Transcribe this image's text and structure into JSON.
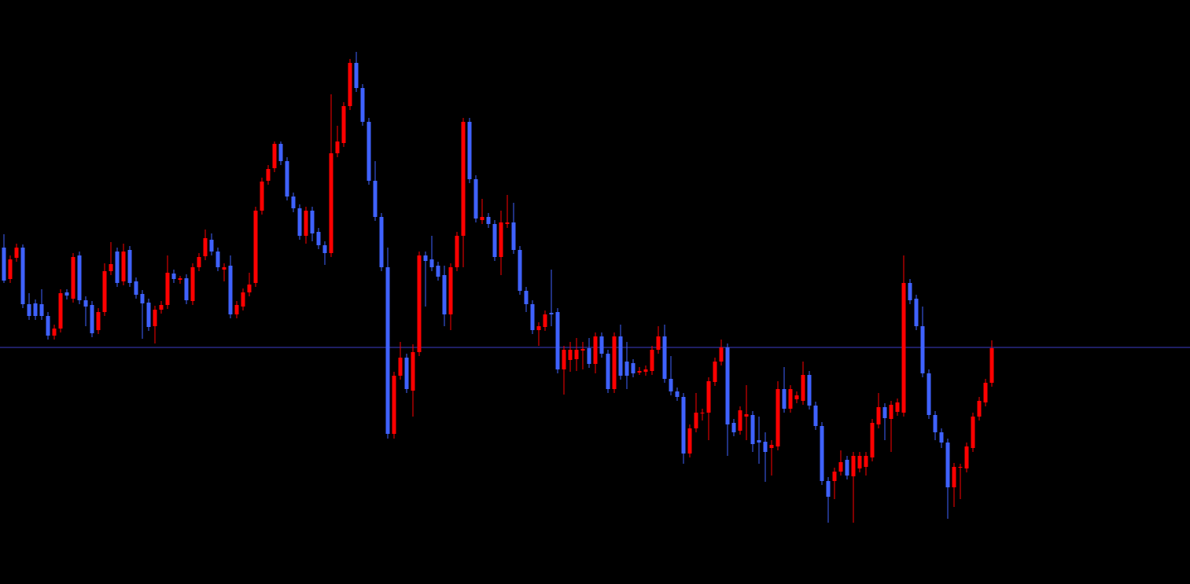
{
  "chart_data": {
    "type": "candlestick",
    "up_color": "#ff0000",
    "down_color": "#3f62ff",
    "background": "#000000",
    "ylim": [
      0,
      743
    ],
    "hline": {
      "value": 301,
      "color": "#3c3cc8"
    },
    "open": [
      428,
      388,
      415,
      428,
      356,
      357,
      356,
      341,
      316,
      325,
      371,
      363,
      418,
      361,
      355,
      323,
      346,
      398,
      423,
      385,
      425,
      385,
      369,
      358,
      328,
      349,
      355,
      395,
      387,
      389,
      360,
      403,
      417,
      438,
      423,
      400,
      405,
      343,
      353,
      371,
      383,
      475,
      513,
      529,
      560,
      538,
      493,
      478,
      443,
      475,
      448,
      431,
      421,
      548,
      561,
      608,
      663,
      631,
      588,
      513,
      467,
      403,
      191,
      265,
      288,
      246,
      295,
      418,
      413,
      405,
      393,
      343,
      403,
      443,
      588,
      515,
      463,
      467,
      458,
      416,
      458,
      460,
      425,
      373,
      356,
      323,
      327,
      345,
      346,
      273,
      285,
      286,
      297,
      300,
      280,
      315,
      293,
      248,
      315,
      283,
      281,
      269,
      270,
      271,
      298,
      315,
      261,
      245,
      238,
      166,
      198,
      217,
      218,
      257,
      283,
      301,
      205,
      195,
      213,
      215,
      183,
      181,
      173,
      175,
      248,
      223,
      235,
      233,
      266,
      227,
      201,
      131,
      131,
      143,
      158,
      137,
      147,
      149,
      161,
      203,
      225,
      210,
      219,
      218,
      383,
      363,
      328,
      268,
      215,
      193,
      180,
      123,
      148,
      147,
      173,
      213,
      231,
      256
    ],
    "high": [
      445,
      418,
      433,
      432,
      370,
      362,
      375,
      346,
      330,
      375,
      375,
      421,
      423,
      366,
      360,
      351,
      408,
      435,
      428,
      433,
      430,
      390,
      374,
      363,
      354,
      360,
      418,
      400,
      392,
      394,
      408,
      421,
      451,
      446,
      428,
      408,
      418,
      360,
      376,
      396,
      480,
      517,
      533,
      563,
      563,
      543,
      498,
      483,
      480,
      480,
      453,
      436,
      623,
      583,
      613,
      668,
      677,
      636,
      593,
      538,
      472,
      428,
      270,
      308,
      293,
      305,
      423,
      423,
      443,
      410,
      405,
      408,
      448,
      593,
      593,
      520,
      490,
      472,
      463,
      475,
      495,
      485,
      430,
      378,
      361,
      333,
      348,
      400,
      351,
      303,
      308,
      313,
      308,
      313,
      320,
      320,
      298,
      320,
      330,
      308,
      286,
      276,
      278,
      303,
      328,
      330,
      290,
      250,
      243,
      203,
      243,
      223,
      263,
      288,
      311,
      306,
      210,
      226,
      253,
      220,
      213,
      193,
      183,
      258,
      276,
      253,
      245,
      283,
      271,
      232,
      206,
      136,
      148,
      170,
      163,
      168,
      168,
      168,
      210,
      243,
      230,
      233,
      236,
      418,
      388,
      368,
      353,
      273,
      220,
      198,
      185,
      154,
      153,
      180,
      218,
      238,
      261,
      310
    ],
    "low": [
      383,
      383,
      410,
      351,
      336,
      336,
      336,
      311,
      311,
      320,
      362,
      358,
      356,
      328,
      314,
      318,
      341,
      393,
      378,
      380,
      378,
      363,
      312,
      322,
      306,
      344,
      350,
      383,
      382,
      356,
      355,
      398,
      412,
      418,
      398,
      385,
      338,
      338,
      348,
      366,
      378,
      470,
      508,
      524,
      533,
      488,
      473,
      438,
      433,
      436,
      426,
      406,
      416,
      543,
      556,
      603,
      626,
      583,
      508,
      462,
      398,
      185,
      185,
      260,
      243,
      213,
      290,
      353,
      398,
      386,
      328,
      323,
      398,
      403,
      510,
      460,
      458,
      453,
      411,
      393,
      453,
      420,
      368,
      346,
      318,
      303,
      322,
      328,
      268,
      241,
      270,
      271,
      273,
      275,
      268,
      288,
      243,
      243,
      260,
      248,
      263,
      266,
      265,
      266,
      293,
      256,
      240,
      233,
      153,
      161,
      193,
      208,
      183,
      252,
      278,
      163,
      188,
      190,
      183,
      168,
      153,
      130,
      138,
      170,
      218,
      218,
      230,
      228,
      222,
      196,
      126,
      78,
      108,
      138,
      133,
      78,
      142,
      138,
      156,
      198,
      183,
      168,
      214,
      213,
      356,
      323,
      263,
      210,
      183,
      173,
      83,
      98,
      108,
      142,
      168,
      208,
      226,
      251
    ],
    "close": [
      386,
      413,
      428,
      356,
      341,
      341,
      341,
      316,
      325,
      370,
      367,
      416,
      361,
      353,
      319,
      346,
      398,
      407,
      383,
      423,
      383,
      368,
      357,
      327,
      349,
      355,
      396,
      388,
      389,
      361,
      403,
      416,
      440,
      423,
      403,
      403,
      343,
      355,
      371,
      381,
      475,
      512,
      528,
      560,
      538,
      493,
      478,
      443,
      475,
      446,
      431,
      421,
      548,
      563,
      608,
      663,
      631,
      588,
      513,
      467,
      403,
      191,
      265,
      288,
      248,
      295,
      418,
      411,
      403,
      391,
      343,
      403,
      443,
      588,
      515,
      465,
      467,
      458,
      416,
      460,
      460,
      425,
      373,
      356,
      323,
      328,
      343,
      343,
      273,
      298,
      298,
      298,
      299,
      280,
      315,
      293,
      248,
      315,
      265,
      265,
      268,
      271,
      273,
      298,
      315,
      261,
      245,
      238,
      166,
      198,
      218,
      218,
      258,
      283,
      301,
      203,
      193,
      221,
      216,
      178,
      180,
      168,
      177,
      248,
      223,
      248,
      240,
      266,
      227,
      201,
      131,
      111,
      143,
      155,
      138,
      163,
      163,
      163,
      205,
      225,
      211,
      228,
      231,
      383,
      361,
      328,
      268,
      215,
      193,
      180,
      123,
      149,
      149,
      175,
      213,
      233,
      256,
      300
    ]
  }
}
